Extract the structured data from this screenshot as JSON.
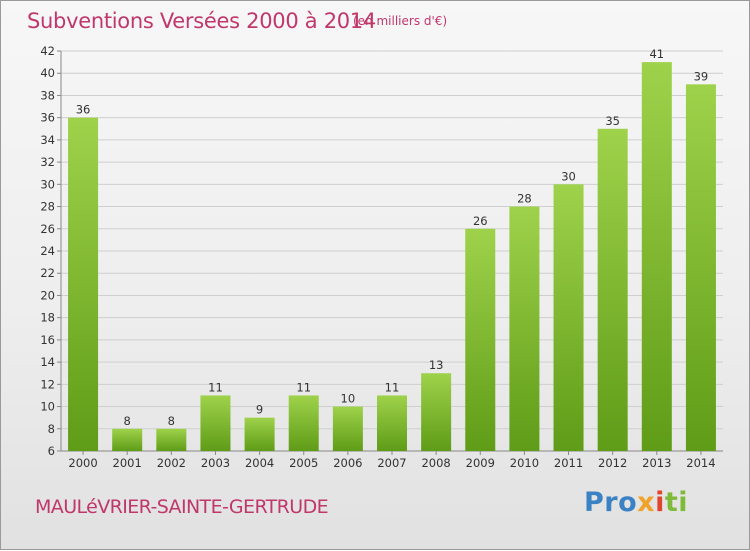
{
  "header": {
    "title": "Subventions Versées 2000 à 2014",
    "unit_note": "(en milliers d'€)"
  },
  "footer": {
    "commune": "MAULéVRIER-SAINTE-GERTRUDE",
    "logo_parts": [
      "Pro",
      "x",
      "i",
      "ti"
    ]
  },
  "colors": {
    "title": "#c0376b",
    "bar_top": "#9fd24b",
    "bar_bottom": "#5f9c17",
    "grid": "#cfcfcf"
  },
  "chart_data": {
    "type": "bar",
    "title": "Subventions Versées 2000 à 2014",
    "categories": [
      "2000",
      "2001",
      "2002",
      "2003",
      "2004",
      "2005",
      "2006",
      "2007",
      "2008",
      "2009",
      "2010",
      "2011",
      "2012",
      "2013",
      "2014"
    ],
    "values": [
      36,
      8,
      8,
      11,
      9,
      11,
      10,
      11,
      13,
      26,
      28,
      30,
      35,
      41,
      39
    ],
    "ylim": [
      6,
      42
    ],
    "yticks": [
      6,
      8,
      10,
      12,
      14,
      16,
      18,
      20,
      22,
      24,
      26,
      28,
      30,
      32,
      34,
      36,
      38,
      40,
      42
    ],
    "grid": true,
    "xlabel": "",
    "ylabel": ""
  }
}
